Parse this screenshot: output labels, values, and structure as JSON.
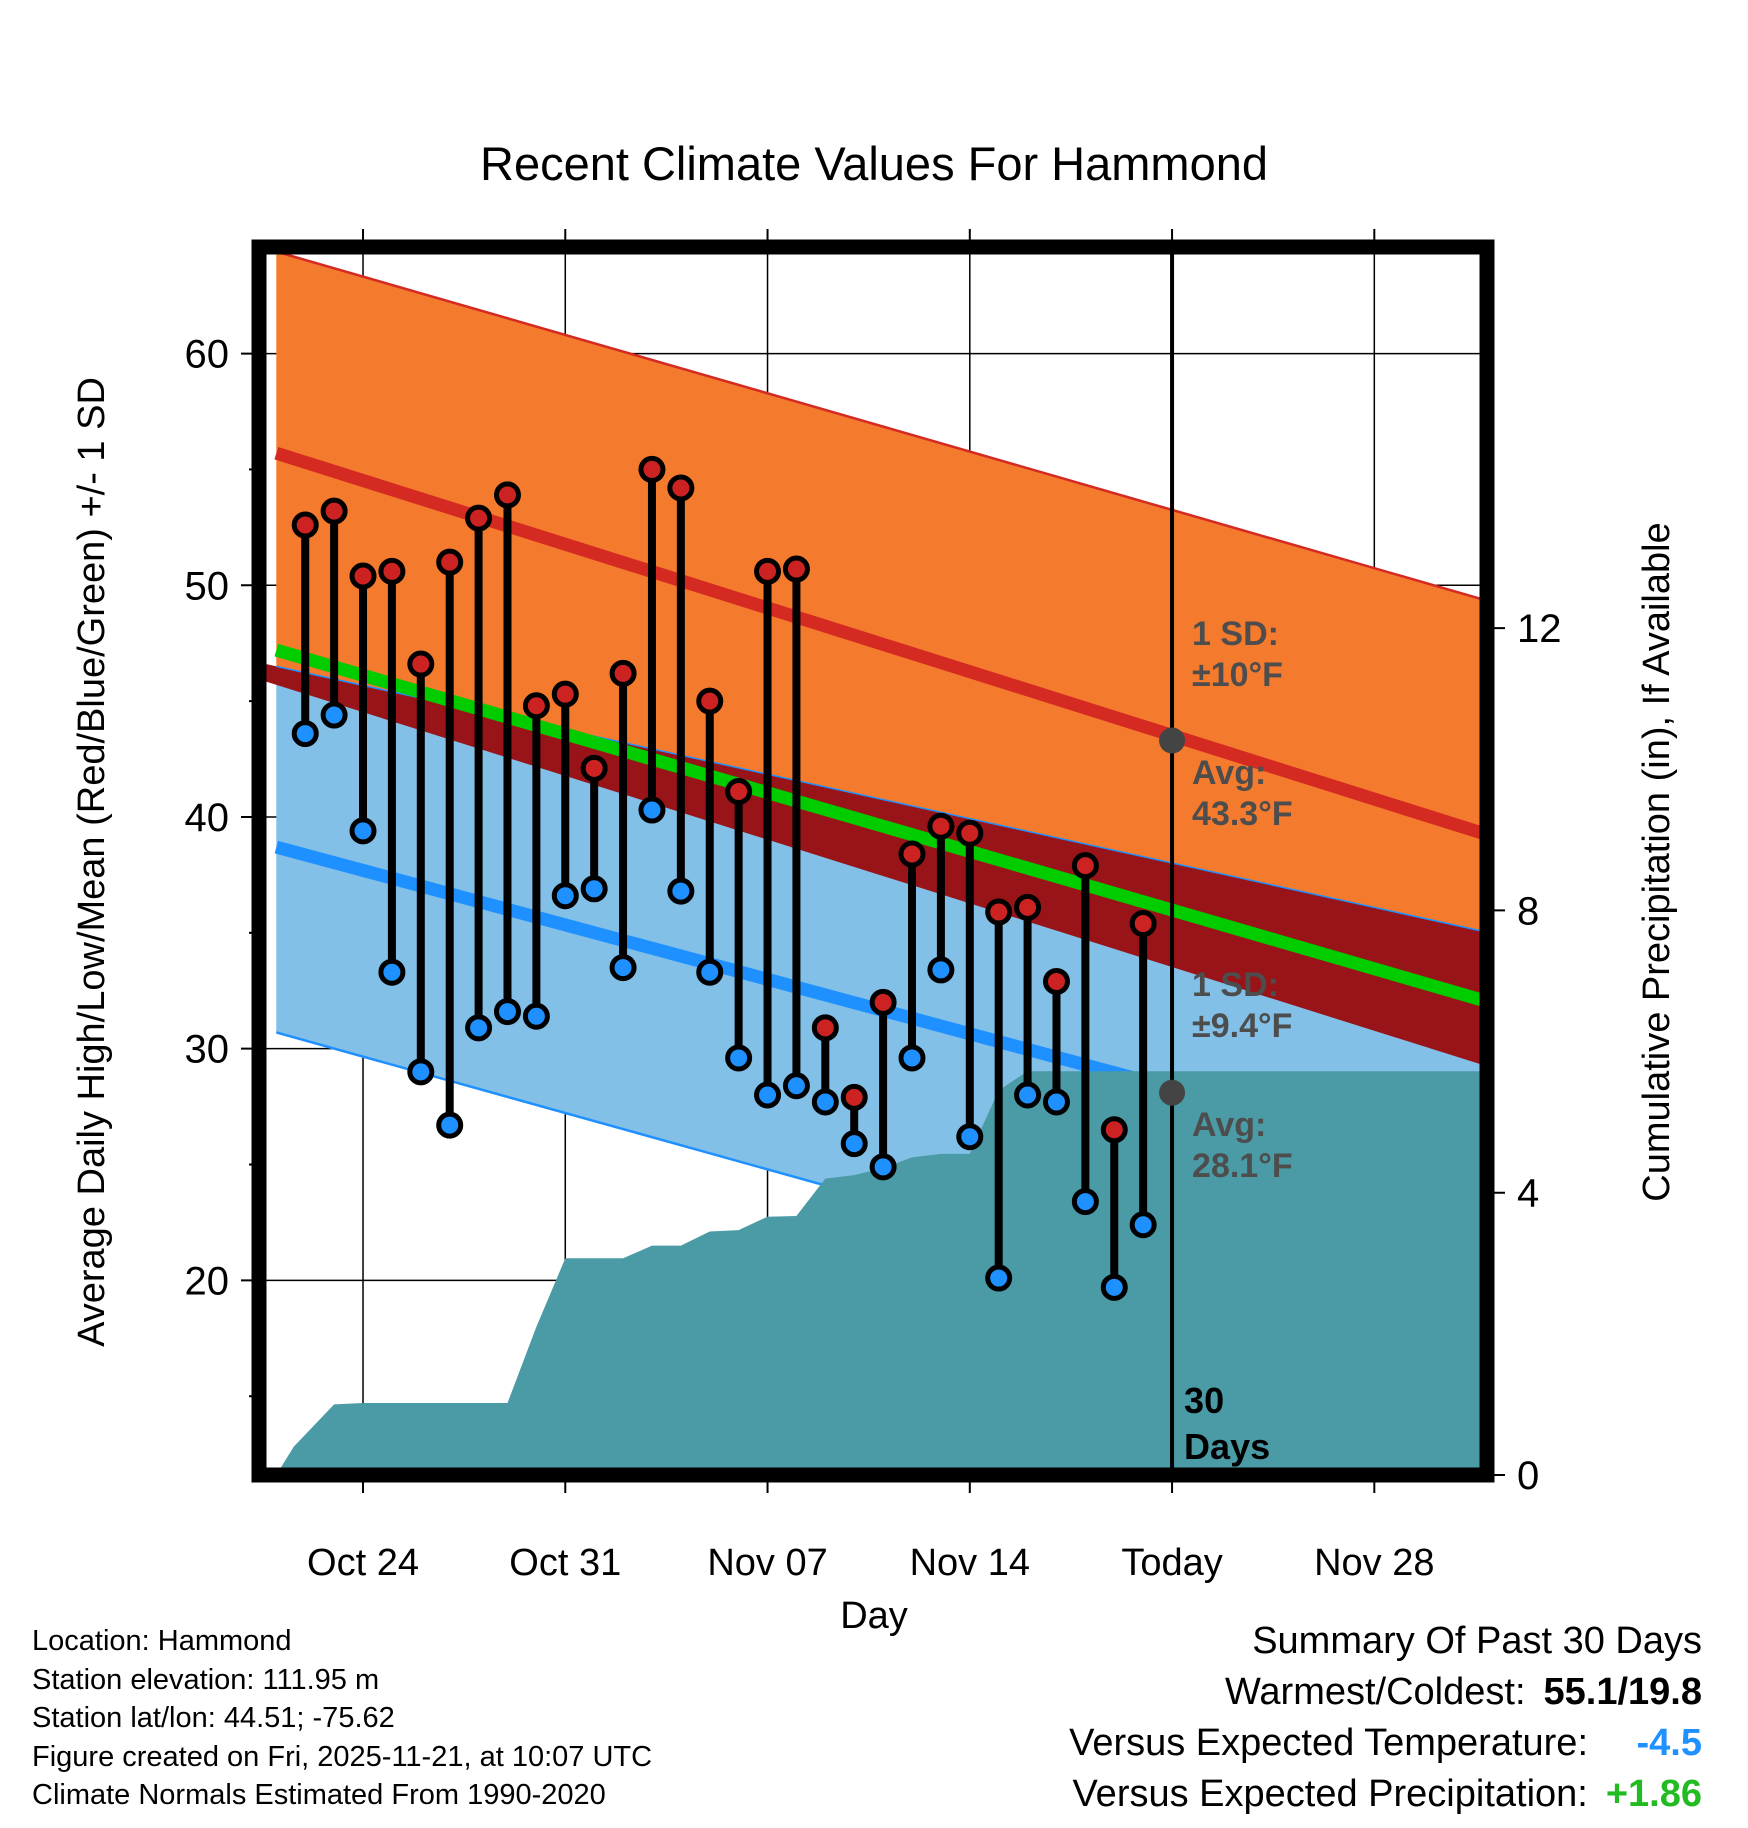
{
  "chart_data": {
    "type": "line",
    "title": "Recent Climate Values For Hammond",
    "xlabel": "Day",
    "ylabel": "Average Daily High/Low/Mean (Red/Blue/Green) +/- 1 SD",
    "y2label": "Cumulative Precipitation (in), If Available",
    "ylim": [
      11.6,
      64.6
    ],
    "y2lim": [
      0,
      17.4
    ],
    "yticks": [
      20,
      30,
      40,
      50,
      60
    ],
    "y2ticks": [
      0,
      4,
      8,
      12
    ],
    "xlim": [
      -3.6,
      38.9
    ],
    "xtick_positions": [
      0,
      7,
      14,
      21,
      28,
      35
    ],
    "xtick_labels": [
      "Oct 24",
      "Oct 31",
      "Nov 07",
      "Nov 14",
      "Today",
      "Nov 28"
    ],
    "today_index": 28,
    "today_label": "30\nDays",
    "normals": {
      "x": [
        -3,
        39
      ],
      "high_avg": [
        55.7,
        39.2
      ],
      "high_upper": [
        64.4,
        49.3
      ],
      "low_avg": [
        38.7,
        24.6
      ],
      "low_lower": [
        30.7,
        16.1
      ],
      "low_upper": [
        46.5,
        35.0
      ],
      "mean_avg": [
        47.2,
        32.0
      ]
    },
    "series": [
      {
        "name": "High",
        "color": "#cc2222",
        "x": [
          -2,
          -1,
          0,
          1,
          2,
          3,
          4,
          5,
          6,
          7,
          8,
          9,
          10,
          11,
          12,
          13,
          14,
          15,
          16,
          17,
          18,
          19,
          20,
          21,
          22,
          23,
          24,
          25,
          26,
          27
        ],
        "values": [
          52.6,
          53.2,
          50.4,
          50.6,
          46.6,
          51.0,
          52.9,
          53.9,
          44.8,
          45.3,
          42.1,
          46.2,
          55.0,
          54.2,
          45.0,
          41.1,
          50.6,
          50.7,
          30.9,
          27.9,
          32.0,
          38.4,
          39.6,
          39.3,
          35.9,
          36.1,
          32.9,
          37.9,
          26.5,
          35.4
        ]
      },
      {
        "name": "Low",
        "color": "#1e90ff",
        "x": [
          -2,
          -1,
          0,
          1,
          2,
          3,
          4,
          5,
          6,
          7,
          8,
          9,
          10,
          11,
          12,
          13,
          14,
          15,
          16,
          17,
          18,
          19,
          20,
          21,
          22,
          23,
          24,
          25,
          26,
          27
        ],
        "values": [
          43.6,
          44.4,
          39.4,
          33.3,
          29.0,
          26.7,
          30.9,
          31.6,
          31.4,
          36.6,
          36.9,
          33.5,
          40.3,
          36.8,
          33.3,
          29.6,
          28.0,
          28.4,
          27.7,
          25.9,
          24.9,
          29.6,
          33.4,
          26.2,
          20.1,
          28.0,
          27.7,
          23.4,
          19.7,
          22.4
        ]
      },
      {
        "name": "Cumulative Precipitation",
        "color": "#4a9ba5",
        "x": [
          -3,
          -2.4,
          -1,
          0,
          0.5,
          1,
          3,
          4,
          5,
          6,
          7,
          8,
          9,
          10,
          11,
          12,
          13,
          14,
          15,
          16,
          17,
          18,
          19,
          20,
          21,
          22,
          23,
          24,
          25,
          26,
          27,
          28,
          29,
          30,
          31,
          32,
          33,
          34,
          35,
          36,
          37,
          38,
          39
        ],
        "values": [
          0,
          0.4,
          1.0,
          1.02,
          1.02,
          1.02,
          1.02,
          1.02,
          1.02,
          2.1,
          3.07,
          3.07,
          3.07,
          3.25,
          3.25,
          3.45,
          3.47,
          3.66,
          3.67,
          4.2,
          4.25,
          4.35,
          4.5,
          4.55,
          4.55,
          5.45,
          5.72,
          5.72,
          5.72,
          5.72,
          5.72,
          5.72,
          5.72,
          5.72,
          5.72,
          5.72,
          5.72,
          5.72,
          5.72,
          5.72,
          5.72,
          5.72,
          5.72
        ]
      }
    ],
    "annotations": {
      "high_sd_label": "1 SD:",
      "high_sd_value": "±10°F",
      "high_avg_label": "Avg:",
      "high_avg_value": "43.3°F",
      "low_sd_label": "1 SD:",
      "low_sd_value": "±9.4°F",
      "low_avg_label": "Avg:",
      "low_avg_value": "28.1°F",
      "today_high_avg": 43.3,
      "today_low_avg": 28.1
    },
    "colors": {
      "high_band": "#f47a2e",
      "high_line": "#d42a22",
      "low_band": "#82c0e8",
      "low_line": "#1e90ff",
      "mean_line": "#00cc00",
      "overlap_band": "#981418",
      "precip": "#4a9ba5",
      "annotation_text": "#4d4d4d"
    }
  },
  "footer": {
    "location": "Location: Hammond",
    "elevation": "Station elevation: 111.95 m",
    "latlon": "Station lat/lon: 44.51; -75.62",
    "created": "Figure created on Fri, 2025-11-21, at 10:07 UTC",
    "normals": "Climate Normals Estimated From 1990-2020"
  },
  "summary": {
    "title": "Summary Of Past 30 Days",
    "warmest_coldest_label": "Warmest/Coldest:",
    "warmest_coldest_value": "55.1/19.8",
    "temp_label": "Versus Expected Temperature:",
    "temp_value": "-4.5",
    "precip_label": "Versus Expected Precipitation:",
    "precip_value": "+1.86"
  }
}
